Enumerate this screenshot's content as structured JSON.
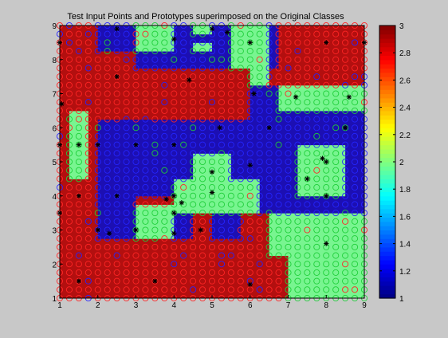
{
  "window": {
    "background": "#c8c8c8"
  },
  "chart_data": {
    "type": "heatmap",
    "title": "Test Input Points and Prototypes superimposed on the Original Classes",
    "xlabel": "",
    "ylabel": "",
    "xlim": [
      1,
      9
    ],
    "ylim": [
      1,
      9
    ],
    "x_ticks": [
      "1",
      "2",
      "3",
      "4",
      "5",
      "6",
      "7",
      "8",
      "9"
    ],
    "y_ticks": [
      "1",
      "2",
      "3",
      "4",
      "5",
      "6",
      "7",
      "8",
      "9"
    ],
    "colormap": "jet",
    "clim": [
      1,
      3
    ],
    "colorbar_ticks": [
      "1",
      "1.2",
      "1.4",
      "1.6",
      "1.8",
      "2",
      "2.2",
      "2.4",
      "2.6",
      "2.8",
      "3"
    ],
    "class_colors": {
      "1": "#1c0fb3",
      "2": "#78f590",
      "3": "#b30f0f"
    },
    "marker_colors": {
      "1": "#2525ff",
      "2": "#1fcf3a",
      "3": "#ff2525"
    },
    "grid_step": 0.25,
    "class_map": {
      "default": 3,
      "regions": [
        {
          "class": 1,
          "x": [
            2,
            4
          ],
          "y": [
            8.25,
            9
          ]
        },
        {
          "class": 1,
          "x": [
            3,
            5.5
          ],
          "y": [
            7.75,
            9
          ]
        },
        {
          "class": 1,
          "x": [
            5.5,
            6
          ],
          "y": [
            8.75,
            9
          ]
        },
        {
          "class": 1,
          "x": [
            6,
            6.75
          ],
          "y": [
            7.75,
            9
          ]
        },
        {
          "class": 2,
          "x": [
            3,
            4
          ],
          "y": [
            8.25,
            9
          ]
        },
        {
          "class": 2,
          "x": [
            4.5,
            5
          ],
          "y": [
            8.25,
            8.5
          ]
        },
        {
          "class": 2,
          "x": [
            4.5,
            5
          ],
          "y": [
            8.75,
            9
          ]
        },
        {
          "class": 2,
          "x": [
            5.5,
            6.5
          ],
          "y": [
            7.75,
            9
          ]
        },
        {
          "class": 2,
          "x": [
            6,
            6.5
          ],
          "y": [
            7.25,
            7.75
          ]
        },
        {
          "class": 3,
          "x": [
            6.75,
            9
          ],
          "y": [
            7.75,
            9
          ]
        },
        {
          "class": 1,
          "x": [
            6,
            9
          ],
          "y": [
            6.25,
            7.25
          ]
        },
        {
          "class": 2,
          "x": [
            6.75,
            9
          ],
          "y": [
            6.5,
            7.25
          ]
        },
        {
          "class": 3,
          "x": [
            1,
            2
          ],
          "y": [
            6,
            7.25
          ]
        },
        {
          "class": 1,
          "x": [
            2,
            9
          ],
          "y": [
            4,
            6.25
          ]
        },
        {
          "class": 2,
          "x": [
            1.25,
            1.75
          ],
          "y": [
            4.5,
            6.5
          ]
        },
        {
          "class": 2,
          "x": [
            7.25,
            8.5
          ],
          "y": [
            4,
            5.5
          ]
        },
        {
          "class": 2,
          "x": [
            4.5,
            5.5
          ],
          "y": [
            4,
            5.25
          ]
        },
        {
          "class": 2,
          "x": [
            4,
            6.25
          ],
          "y": [
            3.5,
            4.5
          ]
        },
        {
          "class": 2,
          "x": [
            3,
            4
          ],
          "y": [
            2.75,
            3.75
          ]
        },
        {
          "class": 1,
          "x": [
            2,
            3
          ],
          "y": [
            2.75,
            4
          ]
        },
        {
          "class": 1,
          "x": [
            4,
            4.5
          ],
          "y": [
            2.75,
            3.5
          ]
        },
        {
          "class": 1,
          "x": [
            5,
            5.75
          ],
          "y": [
            2.75,
            3.5
          ]
        },
        {
          "class": 3,
          "x": [
            5.75,
            6.25
          ],
          "y": [
            2.75,
            3.5
          ]
        },
        {
          "class": 1,
          "x": [
            6.25,
            9
          ],
          "y": [
            3.5,
            4
          ]
        },
        {
          "class": 2,
          "x": [
            6.5,
            9
          ],
          "y": [
            2.25,
            3.5
          ]
        },
        {
          "class": 2,
          "x": [
            7,
            9
          ],
          "y": [
            1,
            2.25
          ]
        },
        {
          "class": 3,
          "x": [
            6.5,
            7
          ],
          "y": [
            1.25,
            2.25
          ]
        }
      ]
    },
    "prototypes": [
      [
        1.0,
        8.5
      ],
      [
        2.5,
        7.5
      ],
      [
        4.4,
        7.4
      ],
      [
        6.1,
        7.0
      ],
      [
        7.2,
        6.9
      ],
      [
        8.6,
        6.9
      ],
      [
        1.05,
        6.7
      ],
      [
        5.2,
        6.0
      ],
      [
        6.5,
        6.0
      ],
      [
        8.5,
        6.0
      ],
      [
        1.0,
        5.5
      ],
      [
        1.5,
        5.5
      ],
      [
        2.0,
        5.5
      ],
      [
        3.0,
        5.5
      ],
      [
        4.0,
        5.5
      ],
      [
        5.0,
        4.7
      ],
      [
        6.0,
        4.9
      ],
      [
        7.5,
        4.5
      ],
      [
        8.0,
        5.0
      ],
      [
        7.9,
        5.1
      ],
      [
        1.5,
        4.0
      ],
      [
        2.5,
        4.0
      ],
      [
        3.8,
        3.9
      ],
      [
        4.0,
        4.0
      ],
      [
        5.0,
        4.1
      ],
      [
        8.0,
        4.0
      ],
      [
        4.2,
        3.8
      ],
      [
        4.0,
        3.5
      ],
      [
        1.0,
        3.5
      ],
      [
        2.0,
        3.0
      ],
      [
        2.3,
        2.9
      ],
      [
        3.0,
        3.0
      ],
      [
        4.0,
        2.9
      ],
      [
        4.7,
        3.0
      ],
      [
        8.0,
        2.6
      ],
      [
        1.5,
        1.5
      ],
      [
        3.5,
        1.5
      ],
      [
        6.0,
        1.4
      ],
      [
        4.0,
        8.6
      ],
      [
        5.0,
        8.9
      ],
      [
        6.0,
        8.5
      ],
      [
        8.0,
        8.5
      ],
      [
        2.5,
        8.9
      ],
      [
        5.4,
        8.8
      ],
      [
        9.0,
        8.5
      ]
    ]
  }
}
